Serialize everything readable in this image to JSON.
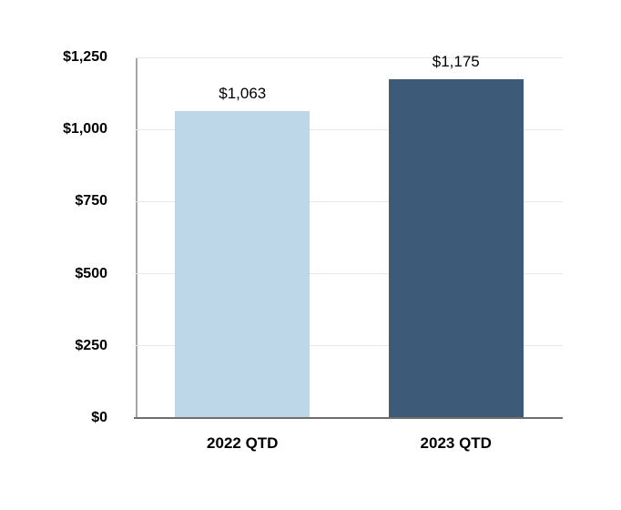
{
  "chart_data": {
    "type": "bar",
    "categories": [
      "2022 QTD",
      "2023 QTD"
    ],
    "values": [
      1063,
      1175
    ],
    "bar_labels": [
      "$1,063",
      "$1,175"
    ],
    "bar_colors": [
      "#bdd7e9",
      "#3d5a78"
    ],
    "title": "",
    "xlabel": "",
    "ylabel": "",
    "ylim": [
      0,
      1250
    ],
    "yticks": [
      {
        "value": 0,
        "label": "$0"
      },
      {
        "value": 250,
        "label": "$250"
      },
      {
        "value": 500,
        "label": "$500"
      },
      {
        "value": 750,
        "label": "$750"
      },
      {
        "value": 1000,
        "label": "$1,000"
      },
      {
        "value": 1250,
        "label": "$1,250"
      }
    ],
    "grid": true,
    "legend": false
  },
  "colors": {
    "background": "#ffffff",
    "grid_line": "#e7e7e7",
    "y_axis_line": "#a6a6a6",
    "x_axis_line": "#6e6e6e",
    "label_text": "#000000"
  }
}
